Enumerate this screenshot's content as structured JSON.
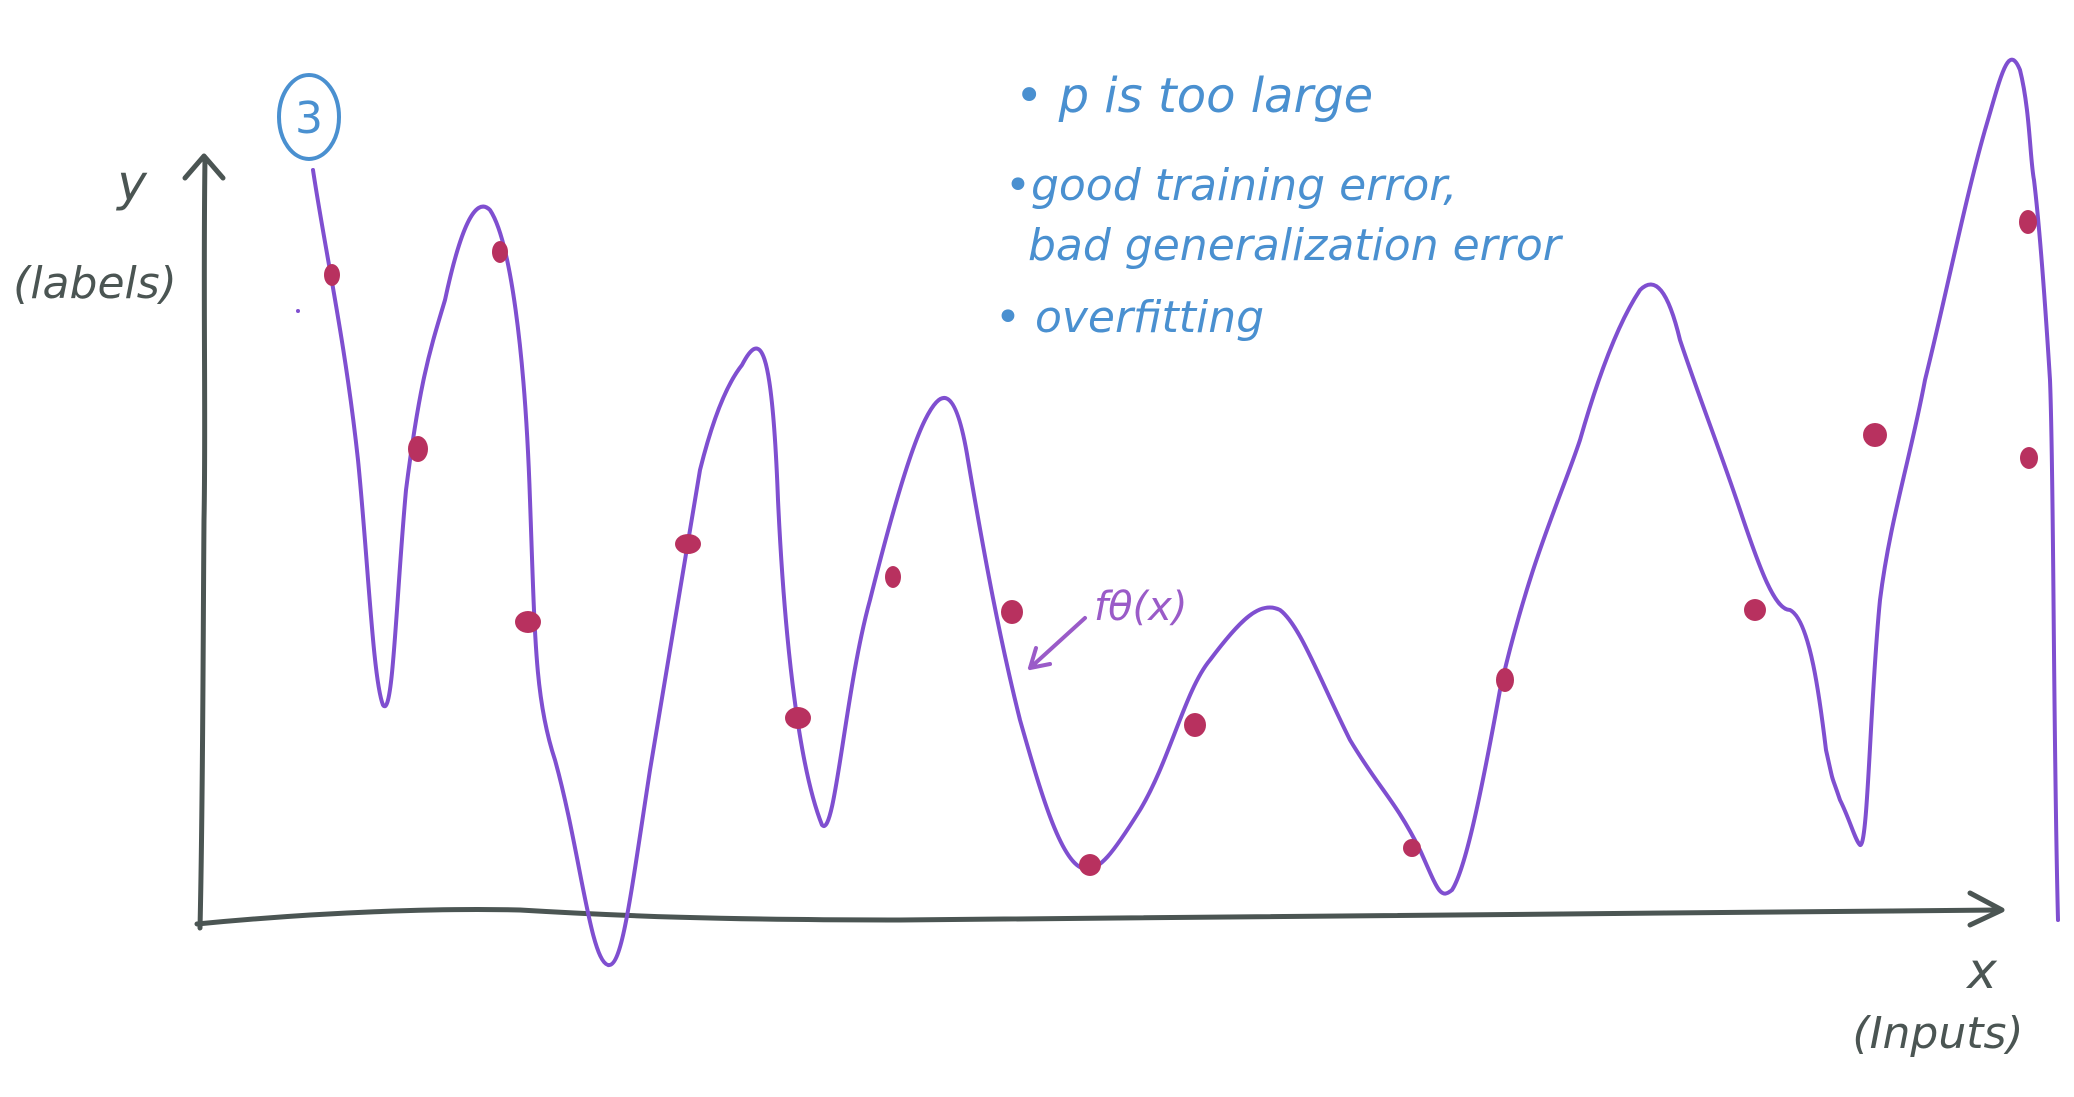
{
  "badge": "3",
  "notes": [
    "• p is too large",
    "•good training error,",
    "bad generalization error",
    "• overfitting"
  ],
  "axes": {
    "y_label": "y",
    "y_sub": "(labels)",
    "x_label": "x",
    "x_sub": "(Inputs)"
  },
  "curve_label": "fθ(x)",
  "colors": {
    "axis": "#4b5553",
    "curve": "#7f4fd0",
    "points": "#b8315f",
    "notes": "#4a90d0"
  }
}
